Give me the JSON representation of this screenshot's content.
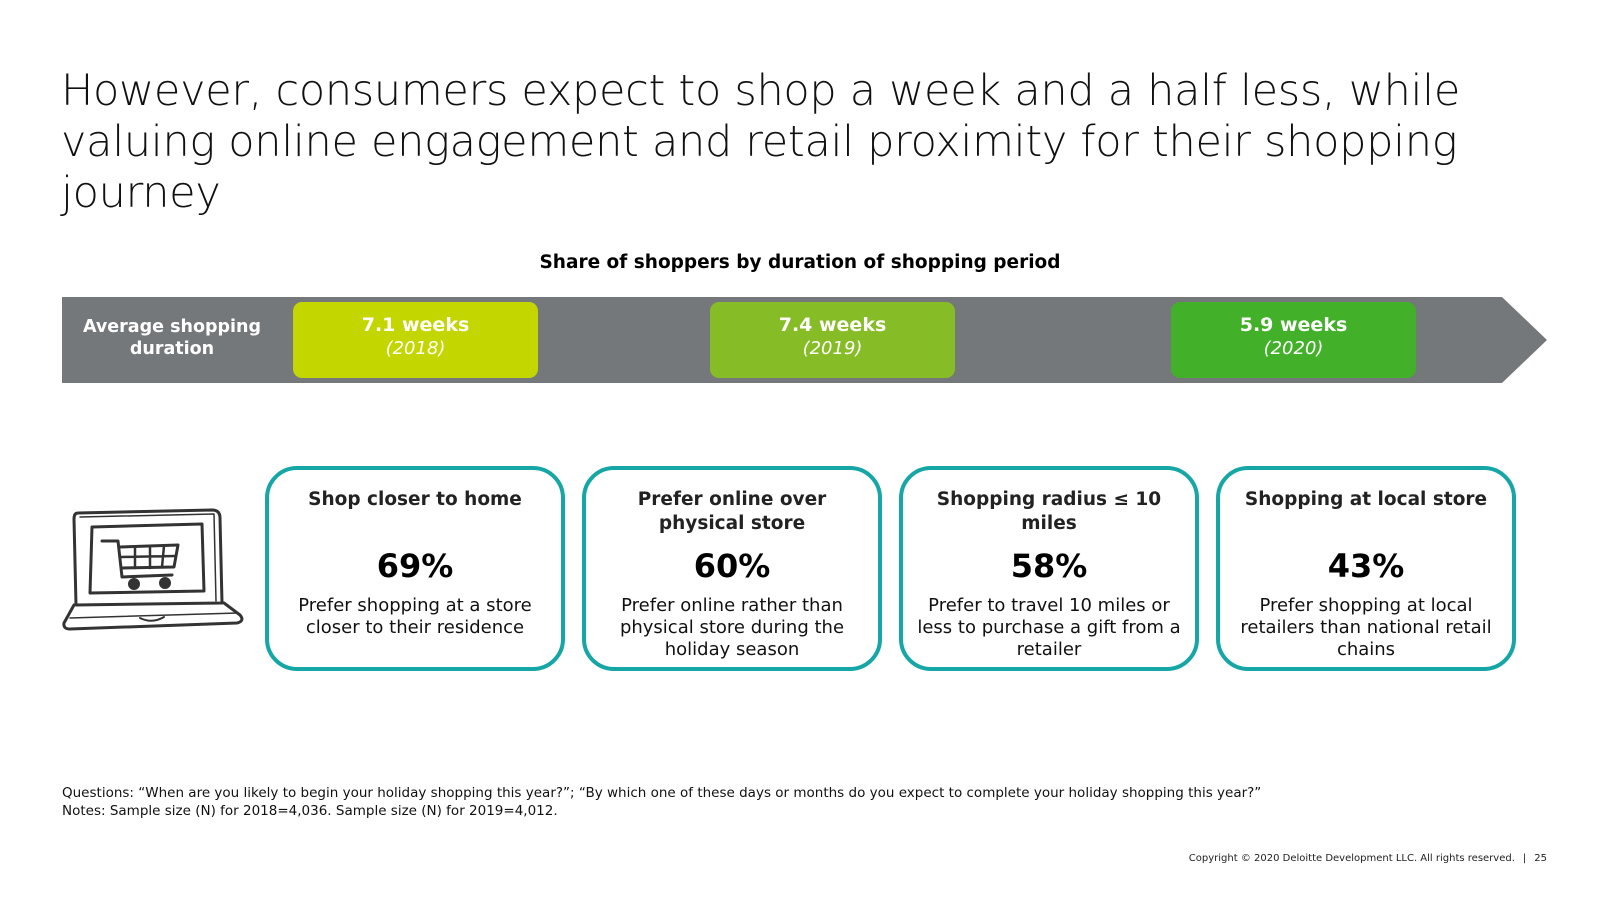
{
  "title": "However, consumers expect to shop a week and a half less, while valuing online engagement and retail proximity for their shopping journey",
  "subtitle": "Share of shoppers by duration of shopping period",
  "bar_label": "Average shopping duration",
  "durations": [
    {
      "weeks": "7.1 weeks",
      "year": "(2018)",
      "color": "#c4d600"
    },
    {
      "weeks": "7.4 weeks",
      "year": "(2019)",
      "color": "#86bc25"
    },
    {
      "weeks": "5.9 weeks",
      "year": "(2020)",
      "color": "#43b02a"
    }
  ],
  "cards": [
    {
      "heading": "Shop closer to home",
      "percent": "69%",
      "description": "Prefer shopping at a store closer to their residence"
    },
    {
      "heading": "Prefer online over physical store",
      "percent": "60%",
      "description": "Prefer online rather than physical store during the holiday season"
    },
    {
      "heading": "Shopping radius ≤ 10 miles",
      "percent": "58%",
      "description": "Prefer to travel 10 miles or less to purchase a gift from a retailer"
    },
    {
      "heading": "Shopping at local store",
      "percent": "43%",
      "description": "Prefer shopping at local retailers than national retail chains"
    }
  ],
  "notes": {
    "questions": "Questions: “When are you likely to begin your holiday shopping this year?”;  “By which one of these days or months do you expect to complete your holiday shopping this year?”",
    "sample": "Notes: Sample size (N) for 2018=4,036. Sample size (N) for 2019=4,012."
  },
  "footer": {
    "copyright": "Copyright © 2020 Deloitte Development LLC. All rights reserved.",
    "separator": "|",
    "page": "25"
  },
  "colors": {
    "bar": "#75787b",
    "card_border": "#17a6a6"
  },
  "icons": {
    "laptop": "laptop-shopping-cart-icon"
  }
}
